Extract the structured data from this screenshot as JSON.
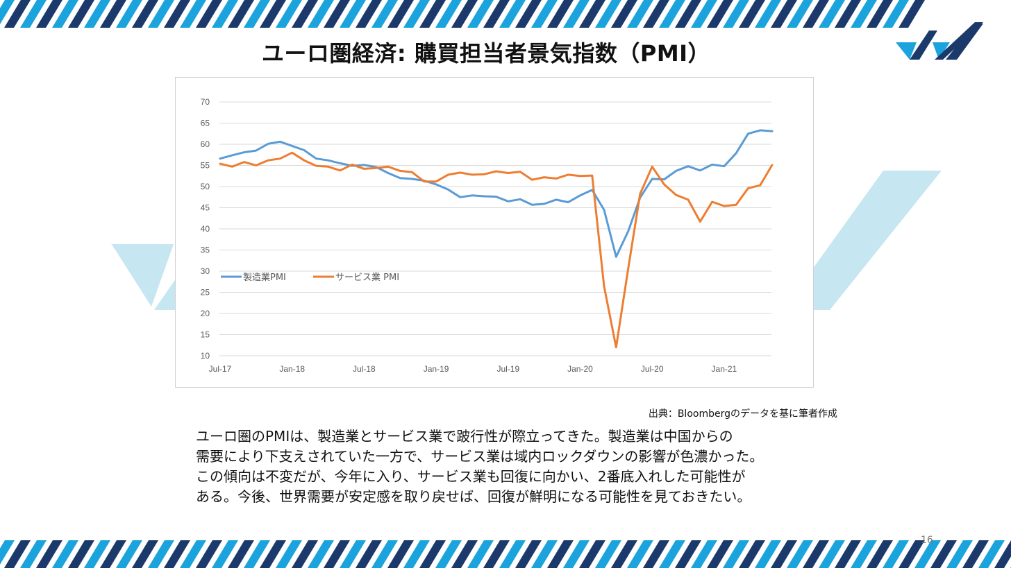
{
  "slide": {
    "title": "ユーロ圏経済: 購買担当者景気指数（PMI）",
    "source": "出典：Bloombergのデータを基に筆者作成",
    "body_lines": [
      "ユーロ圏のPMIは、製造業とサービス業で跛行性が際立ってきた。製造業は中国からの",
      "需要により下支えされていた一方で、サービス業は域内ロックダウンの影響が色濃かった。",
      "この傾向は不変だが、今年に入り、サービス業も回復に向かい、2番底入れした可能性が",
      "ある。今後、世界需要が安定感を取り戻せば、回復が鮮明になる可能性を見ておきたい。"
    ],
    "page_number": "16"
  },
  "colors": {
    "stripe_dark": "#1b3a6b",
    "stripe_light": "#1aa3dc",
    "deco_light": "#c6e6f1",
    "manufacturing": "#5b9bd5",
    "services": "#ed7d31",
    "grid": "#d9d9d9",
    "axis_text": "#595959"
  },
  "chart_data": {
    "type": "line",
    "x_tick_labels": [
      "Jul-17",
      "Jan-18",
      "Jul-18",
      "Jan-19",
      "Jul-19",
      "Jan-20",
      "Jul-20",
      "Jan-21"
    ],
    "x": [
      "2017-07",
      "2017-08",
      "2017-09",
      "2017-10",
      "2017-11",
      "2017-12",
      "2018-01",
      "2018-02",
      "2018-03",
      "2018-04",
      "2018-05",
      "2018-06",
      "2018-07",
      "2018-08",
      "2018-09",
      "2018-10",
      "2018-11",
      "2018-12",
      "2019-01",
      "2019-02",
      "2019-03",
      "2019-04",
      "2019-05",
      "2019-06",
      "2019-07",
      "2019-08",
      "2019-09",
      "2019-10",
      "2019-11",
      "2019-12",
      "2020-01",
      "2020-02",
      "2020-03",
      "2020-04",
      "2020-05",
      "2020-06",
      "2020-07",
      "2020-08",
      "2020-09",
      "2020-10",
      "2020-11",
      "2020-12",
      "2021-01",
      "2021-02",
      "2021-03",
      "2021-04",
      "2021-05"
    ],
    "ylim": [
      10,
      70
    ],
    "y_ticks": [
      10,
      15,
      20,
      25,
      30,
      35,
      40,
      45,
      50,
      55,
      60,
      65,
      70
    ],
    "grid": true,
    "legend_position": "left-middle",
    "series": [
      {
        "name": "製造業PMI",
        "color": "#5b9bd5",
        "values": [
          56.6,
          57.4,
          58.1,
          58.5,
          60.1,
          60.6,
          59.6,
          58.6,
          56.6,
          56.2,
          55.5,
          54.9,
          55.1,
          54.6,
          53.2,
          52.0,
          51.8,
          51.4,
          50.5,
          49.3,
          47.5,
          47.9,
          47.7,
          47.6,
          46.5,
          47.0,
          45.7,
          45.9,
          46.9,
          46.3,
          47.9,
          49.2,
          44.5,
          33.4,
          39.4,
          47.4,
          51.8,
          51.7,
          53.7,
          54.8,
          53.8,
          55.2,
          54.8,
          57.9,
          62.5,
          63.3,
          63.1
        ]
      },
      {
        "name": "サービス業 PMI",
        "color": "#ed7d31",
        "values": [
          55.4,
          54.7,
          55.8,
          55.0,
          56.2,
          56.6,
          58.0,
          56.2,
          54.9,
          54.7,
          53.8,
          55.2,
          54.2,
          54.4,
          54.7,
          53.7,
          53.4,
          51.2,
          51.2,
          52.8,
          53.3,
          52.8,
          52.9,
          53.6,
          53.2,
          53.5,
          51.6,
          52.2,
          51.9,
          52.8,
          52.5,
          52.6,
          26.4,
          12.0,
          30.5,
          48.3,
          54.7,
          50.5,
          48.0,
          46.9,
          41.7,
          46.4,
          45.4,
          45.7,
          49.6,
          50.3,
          55.1
        ]
      }
    ]
  }
}
